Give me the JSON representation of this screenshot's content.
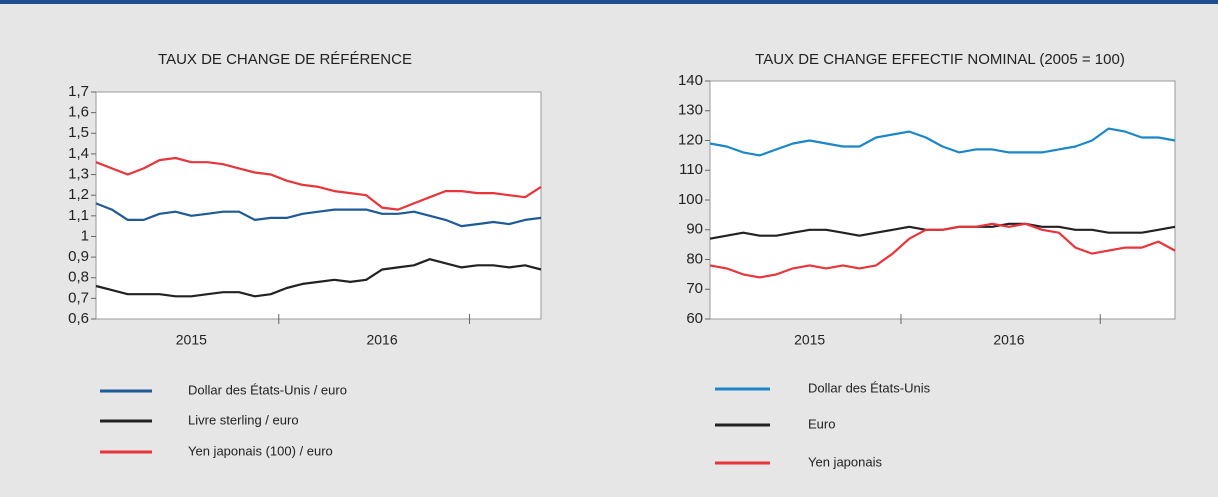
{
  "chart_data": [
    {
      "type": "line",
      "title": "TAUX DE CHANGE DE RÉFÉRENCE",
      "categories": [
        null,
        null,
        null,
        null,
        null,
        null,
        "2015",
        null,
        null,
        null,
        null,
        null,
        null,
        null,
        null,
        null,
        null,
        null,
        "2016",
        null,
        null,
        null,
        null,
        null,
        null,
        null,
        null,
        null,
        null
      ],
      "ylim": [
        0.6,
        1.7
      ],
      "yticks": [
        {
          "value": 0.6,
          "label": "0,6"
        },
        {
          "value": 0.7,
          "label": "0,7"
        },
        {
          "value": 0.8,
          "label": "0,8"
        },
        {
          "value": 0.9,
          "label": "0,9"
        },
        1,
        {
          "value": 1.1,
          "label": "1,1"
        },
        {
          "value": 1.2,
          "label": "1,2"
        },
        {
          "value": 1.3,
          "label": "1,3"
        },
        {
          "value": 1.4,
          "label": "1,4"
        },
        {
          "value": 1.5,
          "label": "1,5"
        },
        {
          "value": 1.6,
          "label": "1,6"
        },
        {
          "value": 1.7,
          "label": "1,7"
        }
      ],
      "series": [
        {
          "name": "Dollar des États-Unis / euro",
          "color": "#1d5a96",
          "values": [
            1.16,
            1.13,
            1.08,
            1.08,
            1.11,
            1.12,
            1.1,
            1.11,
            1.12,
            1.12,
            1.08,
            1.09,
            1.09,
            1.11,
            1.12,
            1.13,
            1.13,
            1.13,
            1.11,
            1.11,
            1.12,
            1.1,
            1.08,
            1.05,
            1.06,
            1.07,
            1.06,
            1.08,
            1.09
          ]
        },
        {
          "name": "Livre sterling / euro",
          "color": "#222222",
          "values": [
            0.76,
            0.74,
            0.72,
            0.72,
            0.72,
            0.71,
            0.71,
            0.72,
            0.73,
            0.73,
            0.71,
            0.72,
            0.75,
            0.77,
            0.78,
            0.79,
            0.78,
            0.79,
            0.84,
            0.85,
            0.86,
            0.89,
            0.87,
            0.85,
            0.86,
            0.86,
            0.85,
            0.86,
            0.84
          ]
        },
        {
          "name": "Yen japonais (100) / euro",
          "color": "#e8343a",
          "values": [
            1.36,
            1.33,
            1.3,
            1.33,
            1.37,
            1.38,
            1.36,
            1.36,
            1.35,
            1.33,
            1.31,
            1.3,
            1.27,
            1.25,
            1.24,
            1.22,
            1.21,
            1.2,
            1.14,
            1.13,
            1.16,
            1.19,
            1.22,
            1.22,
            1.21,
            1.21,
            1.2,
            1.19,
            1.24
          ]
        }
      ]
    },
    {
      "type": "line",
      "title": "TAUX DE CHANGE EFFECTIF NOMINAL (2005 = 100)",
      "categories": [
        null,
        null,
        null,
        null,
        null,
        null,
        "2015",
        null,
        null,
        null,
        null,
        null,
        null,
        null,
        null,
        null,
        null,
        null,
        "2016",
        null,
        null,
        null,
        null,
        null,
        null,
        null,
        null,
        null,
        null
      ],
      "ylim": [
        60,
        140
      ],
      "yticks": [
        60,
        70,
        80,
        90,
        100,
        110,
        120,
        130,
        140
      ],
      "series": [
        {
          "name": "Dollar des États-Unis",
          "color": "#1b87c9",
          "values": [
            119,
            118,
            116,
            115,
            117,
            119,
            120,
            119,
            118,
            118,
            121,
            122,
            123,
            121,
            118,
            116,
            117,
            117,
            116,
            116,
            116,
            117,
            118,
            120,
            124,
            123,
            121,
            121,
            120
          ]
        },
        {
          "name": "Euro",
          "color": "#222222",
          "values": [
            87,
            88,
            89,
            88,
            88,
            89,
            90,
            90,
            89,
            88,
            89,
            90,
            91,
            90,
            90,
            91,
            91,
            91,
            92,
            92,
            91,
            91,
            90,
            90,
            89,
            89,
            89,
            90,
            91
          ]
        },
        {
          "name": "Yen japonais",
          "color": "#e8343a",
          "values": [
            78,
            77,
            75,
            74,
            75,
            77,
            78,
            77,
            78,
            77,
            78,
            82,
            87,
            90,
            90,
            91,
            91,
            92,
            91,
            92,
            90,
            89,
            84,
            82,
            83,
            84,
            84,
            86,
            83
          ]
        }
      ]
    }
  ]
}
